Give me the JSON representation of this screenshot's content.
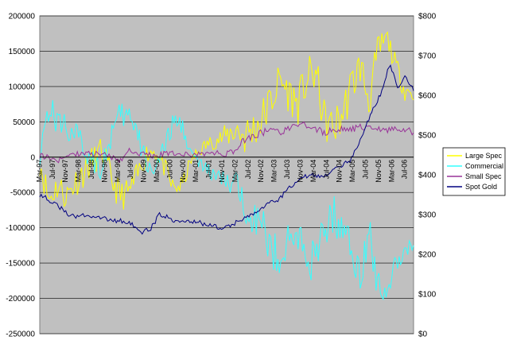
{
  "chart_data": {
    "type": "line",
    "title": "",
    "xlabel": "",
    "ylabel": "",
    "x_ticks": [
      "Mar-97",
      "Jul-97",
      "Nov-97",
      "Mar-98",
      "Jul-98",
      "Nov-98",
      "Mar-99",
      "Jul-99",
      "Nov-99",
      "Mar-00",
      "Jul-00",
      "Nov-00",
      "Mar-01",
      "Jul-01",
      "Nov-01",
      "Mar-02",
      "Jul-02",
      "Nov-02",
      "Mar-03",
      "Jul-03",
      "Nov-03",
      "Mar-04",
      "Jul-04",
      "Nov-04",
      "Mar-05",
      "Jul-05",
      "Nov-05",
      "Mar-06",
      "Jul-06"
    ],
    "y_left": {
      "ticks": [
        "200000",
        "150000",
        "100000",
        "50000",
        "0",
        "-50000",
        "-100000",
        "-150000",
        "-200000",
        "-250000"
      ],
      "ylim": [
        -250000,
        200000
      ]
    },
    "y_right": {
      "ticks": [
        "$800",
        "$700",
        "$600",
        "$500",
        "$400",
        "$300",
        "$200",
        "$100",
        "$0"
      ],
      "ylim": [
        0,
        800
      ]
    },
    "grid": true,
    "legend_position": "right",
    "series": [
      {
        "name": "Large Spec",
        "color": "#ffff00",
        "axis": "left",
        "values": [
          -5000,
          -60000,
          -40000,
          -55000,
          -35000,
          -20000,
          -5000,
          10000,
          -30000,
          -55000,
          -50000,
          -25000,
          5000,
          10000,
          -15000,
          -45000,
          -40000,
          -5000,
          10000,
          20000,
          25000,
          30000,
          40000,
          30000,
          40000,
          55000,
          80000,
          110000,
          90000,
          75000,
          110000,
          120000,
          50000,
          40000,
          60000,
          100000,
          130000,
          80000,
          150000,
          170000,
          130000,
          95000,
          90000
        ],
        "volatility": [
          22000,
          22000,
          22000,
          22000,
          22000,
          22000,
          22000,
          20000,
          22000,
          22000,
          20000,
          18000,
          15000,
          15000,
          15000,
          15000,
          13000,
          10000,
          10000,
          10000,
          13000,
          18000,
          25000,
          30000,
          30000,
          30000,
          30000,
          28000,
          28000,
          30000,
          30000,
          30000,
          30000,
          30000,
          30000,
          30000,
          28000,
          28000,
          25000,
          15000,
          15000,
          15000,
          15000
        ]
      },
      {
        "name": "Commercial",
        "color": "#33ffff",
        "axis": "left",
        "values": [
          10000,
          70000,
          50000,
          45000,
          30000,
          10000,
          0,
          -15000,
          30000,
          55000,
          60000,
          30000,
          -10000,
          -15000,
          10000,
          50000,
          45000,
          5000,
          -10000,
          -20000,
          -30000,
          -35000,
          -45000,
          -60000,
          -80000,
          -100000,
          -130000,
          -140000,
          -120000,
          -110000,
          -140000,
          -150000,
          -100000,
          -80000,
          -100000,
          -130000,
          -160000,
          -110000,
          -180000,
          -190000,
          -150000,
          -130000,
          -120000
        ],
        "volatility": [
          22000,
          22000,
          22000,
          22000,
          22000,
          22000,
          22000,
          20000,
          22000,
          22000,
          20000,
          18000,
          15000,
          15000,
          15000,
          15000,
          13000,
          10000,
          10000,
          10000,
          13000,
          18000,
          25000,
          30000,
          30000,
          30000,
          30000,
          28000,
          28000,
          30000,
          30000,
          30000,
          30000,
          30000,
          30000,
          30000,
          28000,
          28000,
          25000,
          15000,
          15000,
          15000,
          15000
        ]
      },
      {
        "name": "Small Spec",
        "color": "#993399",
        "axis": "left",
        "values": [
          2000,
          0,
          -5000,
          0,
          5000,
          5000,
          5000,
          5000,
          0,
          -5000,
          10000,
          5000,
          5000,
          0,
          5000,
          5000,
          5000,
          2000,
          5000,
          5000,
          5000,
          5000,
          10000,
          25000,
          30000,
          35000,
          38000,
          35000,
          40000,
          45000,
          45000,
          40000,
          35000,
          38000,
          40000,
          40000,
          42000,
          40000,
          40000,
          38000,
          40000,
          40000,
          35000
        ],
        "volatility": [
          4000,
          4000,
          4000,
          4000,
          4000,
          4000,
          4000,
          4000,
          4000,
          4000,
          4000,
          4000,
          4000,
          4000,
          4000,
          4000,
          4000,
          4000,
          4000,
          4000,
          5000,
          5000,
          5000,
          5000,
          5000,
          5000,
          5000,
          5000,
          5000,
          5000,
          5000,
          5000,
          5000,
          5000,
          5000,
          5000,
          5000,
          5000,
          5000,
          5000,
          5000,
          5000,
          5000
        ]
      },
      {
        "name": "Spot Gold",
        "color": "#000080",
        "axis": "right",
        "values": [
          350,
          340,
          325,
          310,
          295,
          295,
          300,
          295,
          290,
          285,
          285,
          280,
          270,
          255,
          265,
          300,
          295,
          285,
          285,
          280,
          280,
          275,
          270,
          265,
          270,
          285,
          290,
          305,
          320,
          330,
          335,
          360,
          375,
          395,
          400,
          395,
          400,
          420,
          425,
          435,
          470,
          520,
          570,
          610,
          680,
          620,
          650,
          610
        ]
      }
    ],
    "n_points": 120
  }
}
